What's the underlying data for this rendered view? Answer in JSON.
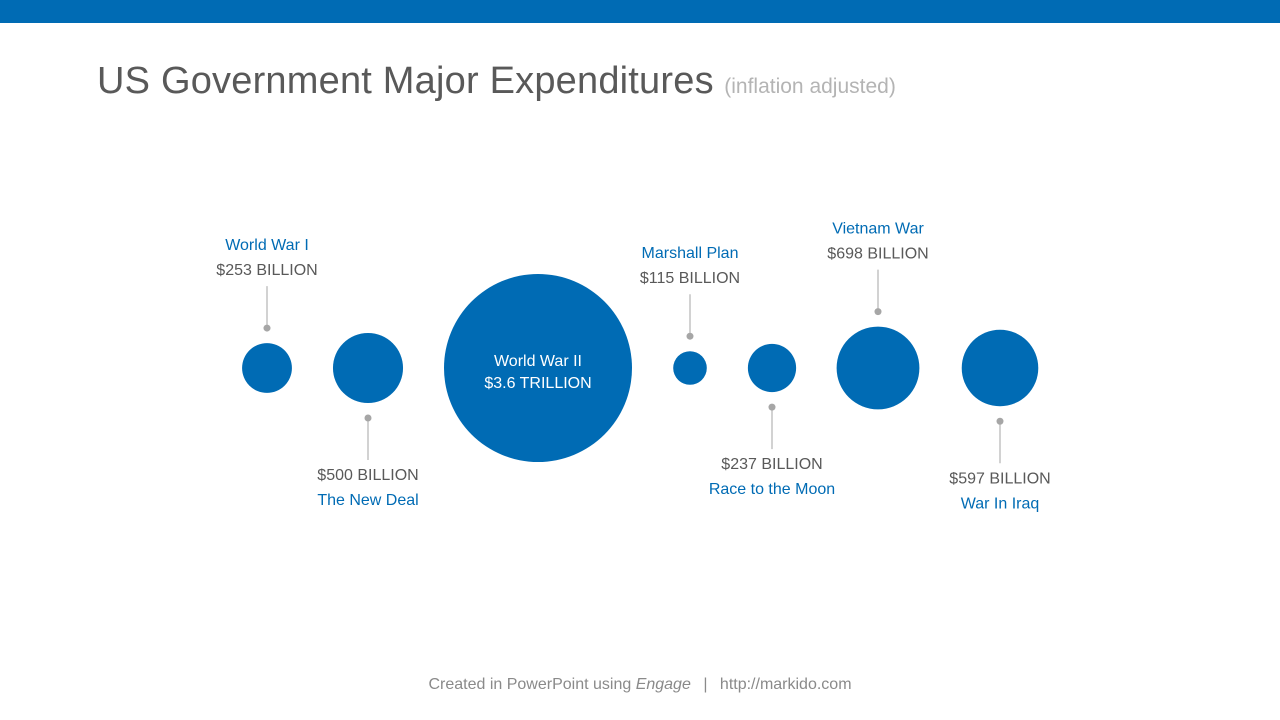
{
  "header": {
    "title": "US Government Major Expenditures",
    "subtitle": "(inflation adjusted)"
  },
  "colors": {
    "accent": "#006bb4",
    "label_name": "#006bb4",
    "label_value": "#595959",
    "leader": "#a6a6a6",
    "inner_text": "#ffffff"
  },
  "chart_data": {
    "type": "bubble",
    "title": "US Government Major Expenditures",
    "subtitle": "(inflation adjusted)",
    "unit": "USD billions (inflation adjusted)",
    "items": [
      {
        "name": "World War I",
        "value_label": "$253 BILLION",
        "value": 253,
        "label_position": "above"
      },
      {
        "name": "The New Deal",
        "value_label": "$500 BILLION",
        "value": 500,
        "label_position": "below"
      },
      {
        "name": "World War II",
        "value_label": "$3.6 TRILLION",
        "value": 3600,
        "label_position": "inside"
      },
      {
        "name": "Marshall Plan",
        "value_label": "$115 BILLION",
        "value": 115,
        "label_position": "above"
      },
      {
        "name": "Race to the Moon",
        "value_label": "$237 BILLION",
        "value": 237,
        "label_position": "below"
      },
      {
        "name": "Vietnam War",
        "value_label": "$698 BILLION",
        "value": 698,
        "label_position": "above"
      },
      {
        "name": "War In Iraq",
        "value_label": "$597 BILLION",
        "value": 597,
        "label_position": "below"
      }
    ]
  },
  "footer": {
    "prefix": "Created in PowerPoint using",
    "brand": "Engage",
    "separator": "|",
    "url": "http://markido.com"
  }
}
